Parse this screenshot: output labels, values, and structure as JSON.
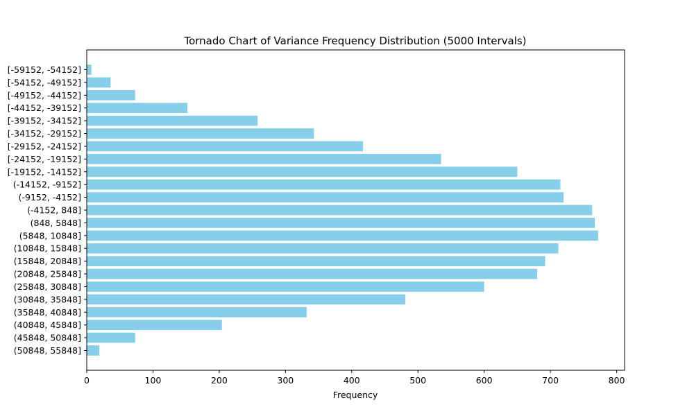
{
  "chart_data": {
    "type": "bar",
    "orientation": "horizontal",
    "title": "Tornado Chart of Variance Frequency Distribution (5000 Intervals)",
    "xlabel": "Frequency",
    "ylabel": "",
    "xlim": [
      0,
      812
    ],
    "xticks": [
      0,
      100,
      200,
      300,
      400,
      500,
      600,
      700,
      800
    ],
    "grid": false,
    "bar_color": "#87ceeb",
    "categories": [
      "[-59152, -54152]",
      "[-54152, -49152]",
      "[-49152, -44152]",
      "[-44152, -39152]",
      "[-39152, -34152]",
      "[-34152, -29152]",
      "[-29152, -24152]",
      "[-24152, -19152]",
      "[-19152, -14152]",
      "(-14152, -9152]",
      "(-9152, -4152]",
      "(-4152, 848]",
      "(848, 5848]",
      "(5848, 10848]",
      "(10848, 15848]",
      "(15848, 20848]",
      "(20848, 25848]",
      "(25848, 30848]",
      "(30848, 35848]",
      "(35848, 40848]",
      "(40848, 45848]",
      "(45848, 50848]",
      "(50848, 55848]"
    ],
    "values": [
      7,
      36,
      73,
      152,
      258,
      343,
      417,
      535,
      650,
      715,
      720,
      763,
      767,
      772,
      712,
      692,
      680,
      600,
      481,
      332,
      204,
      73,
      19
    ]
  }
}
